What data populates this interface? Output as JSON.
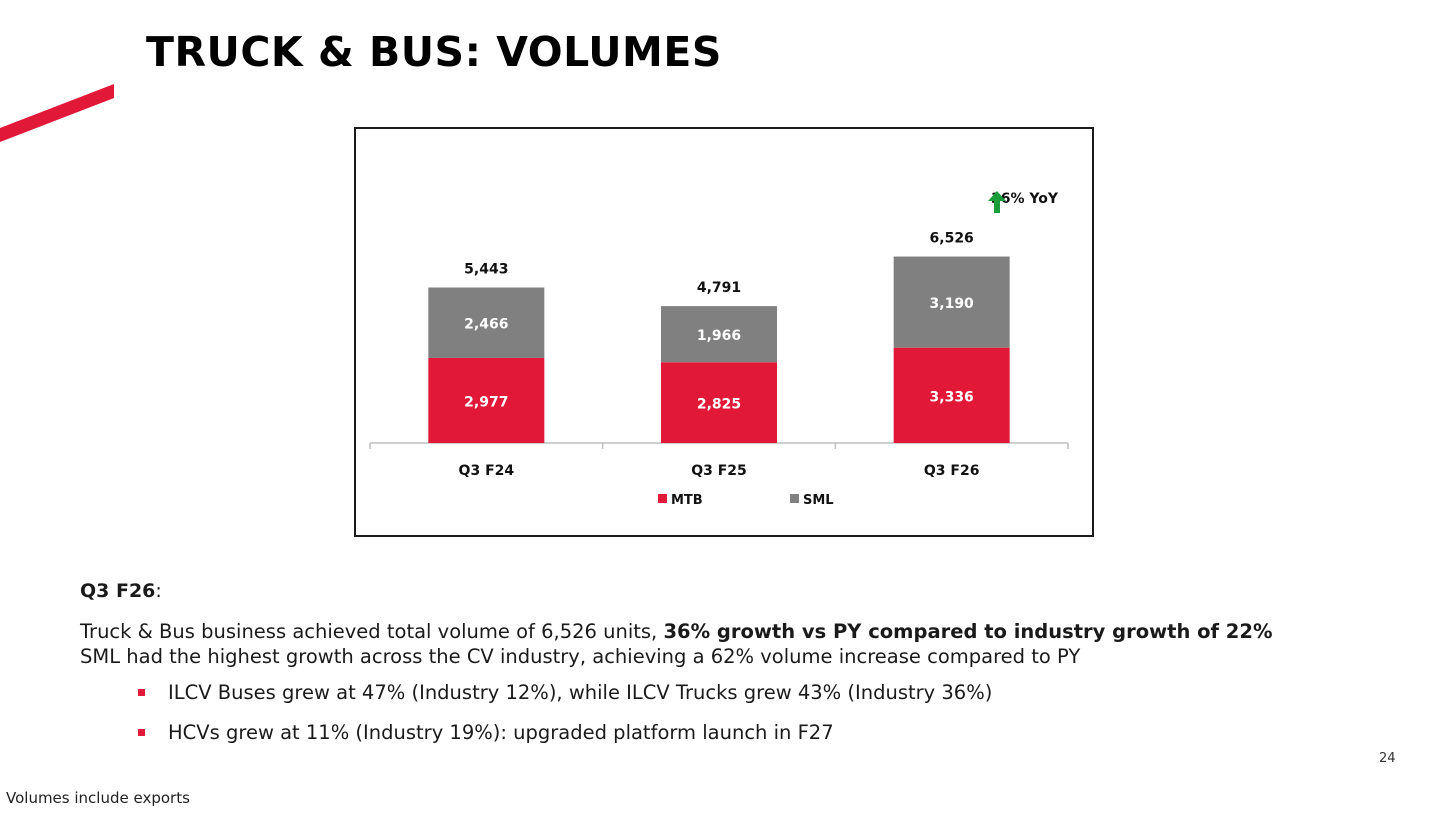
{
  "slide": {
    "title": "TRUCK & BUS: VOLUMES",
    "page_number": "24",
    "footnote": "Volumes include exports"
  },
  "colors": {
    "accent_red": "#e11837",
    "sml_gray": "#808080",
    "growth_green": "#1a9e3a"
  },
  "yoy": {
    "icon": "arrow-up-icon",
    "label": "36% YoY"
  },
  "commentary": {
    "heading": "Q3 F26",
    "heading_suffix": ":",
    "line1_normal": "Truck & Bus business achieved total volume of 6,526 units, ",
    "line1_bold": "36% growth vs PY compared to industry growth of 22%",
    "line2": "SML had the highest growth across the CV industry, achieving a 62% volume increase compared to PY",
    "bullets": [
      "ILCV Buses grew at 47% (Industry 12%), while ILCV Trucks grew 43% (Industry 36%)",
      "HCVs grew at 11%  (Industry 19%): upgraded platform launch in F27"
    ]
  },
  "chart_data": {
    "type": "bar",
    "stacked": true,
    "categories": [
      "Q3 F24",
      "Q3 F25",
      "Q3 F26"
    ],
    "series": [
      {
        "name": "MTB",
        "values": [
          2977,
          2825,
          3336
        ],
        "labels": [
          "2,977",
          "2,825",
          "3,336"
        ],
        "color": "#e11837"
      },
      {
        "name": "SML",
        "values": [
          2466,
          1966,
          3190
        ],
        "labels": [
          "2,466",
          "1,966",
          "3,190"
        ],
        "color": "#808080"
      }
    ],
    "totals": [
      5443,
      4791,
      6526
    ],
    "total_labels": [
      "5,443",
      "4,791",
      "6,526"
    ],
    "ylim": [
      0,
      7000
    ],
    "legend": "bottom",
    "grid": false
  }
}
